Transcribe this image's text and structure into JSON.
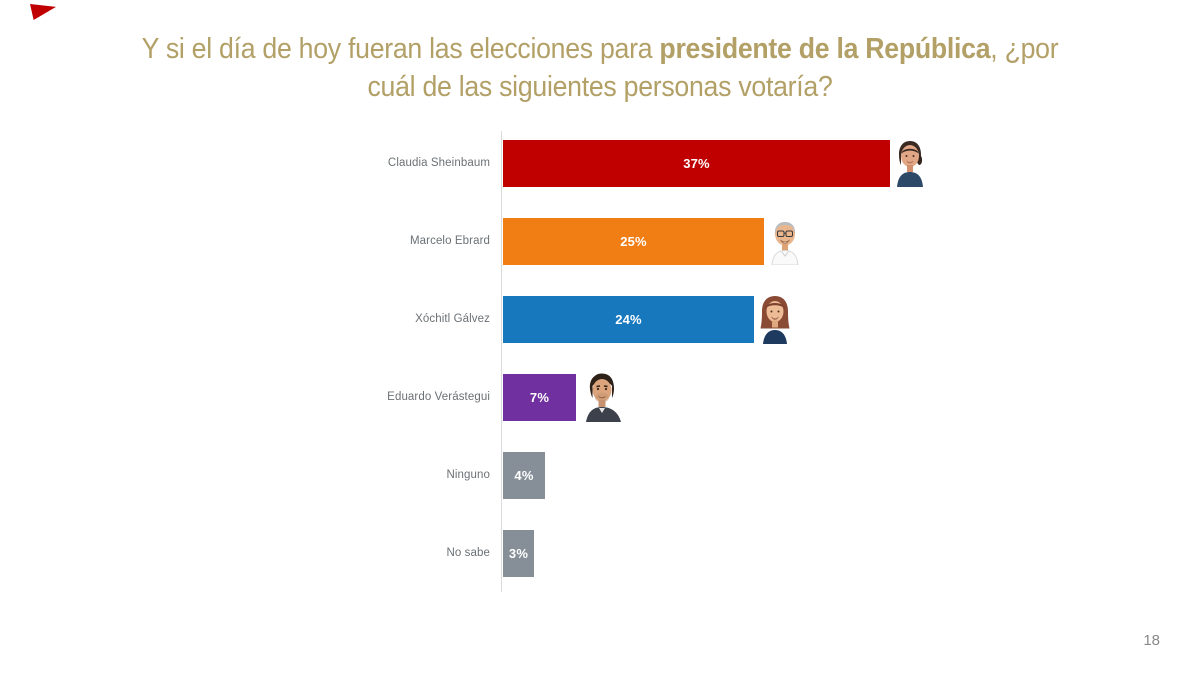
{
  "slide": {
    "background": "#FFFFFF",
    "page_number": "18",
    "accent_color": "#C00000"
  },
  "title": {
    "color": "#B2A067",
    "line1_regular": "Y si el día de hoy fueran las elecciones para ",
    "line1_bold": "presidente de la República",
    "line1_tail": ", ¿por",
    "line2": "cuál de las siguientes personas votaría?",
    "full_text": "Y si el día de hoy fueran las elecciones para presidente de la República, ¿por cuál de las siguientes personas votaría?"
  },
  "chart_data": {
    "type": "bar",
    "orientation": "horizontal",
    "categories": [
      "Claudia Sheinbaum",
      "Marcelo Ebrard",
      "Xóchitl Gálvez",
      "Eduardo Verástegui",
      "Ninguno",
      "No sabe"
    ],
    "values": [
      37,
      25,
      24,
      7,
      4,
      3
    ],
    "value_labels": [
      "37%",
      "25%",
      "24%",
      "7%",
      "4%",
      "3%"
    ],
    "bar_colors": [
      "#C00000",
      "#F07E14",
      "#1778BE",
      "#7030A0",
      "#868F97",
      "#868F97"
    ],
    "photos": [
      "claudia-sheinbaum",
      "marcelo-ebrard",
      "xochitl-galvez",
      "eduardo-verastegui",
      null,
      null
    ],
    "xlim": [
      0,
      40
    ],
    "value_label_color": "#FFFFFF",
    "category_label_color": "#6C7175",
    "axis_line_color": "#DBDBDB",
    "gridlines": false,
    "legend": false
  }
}
